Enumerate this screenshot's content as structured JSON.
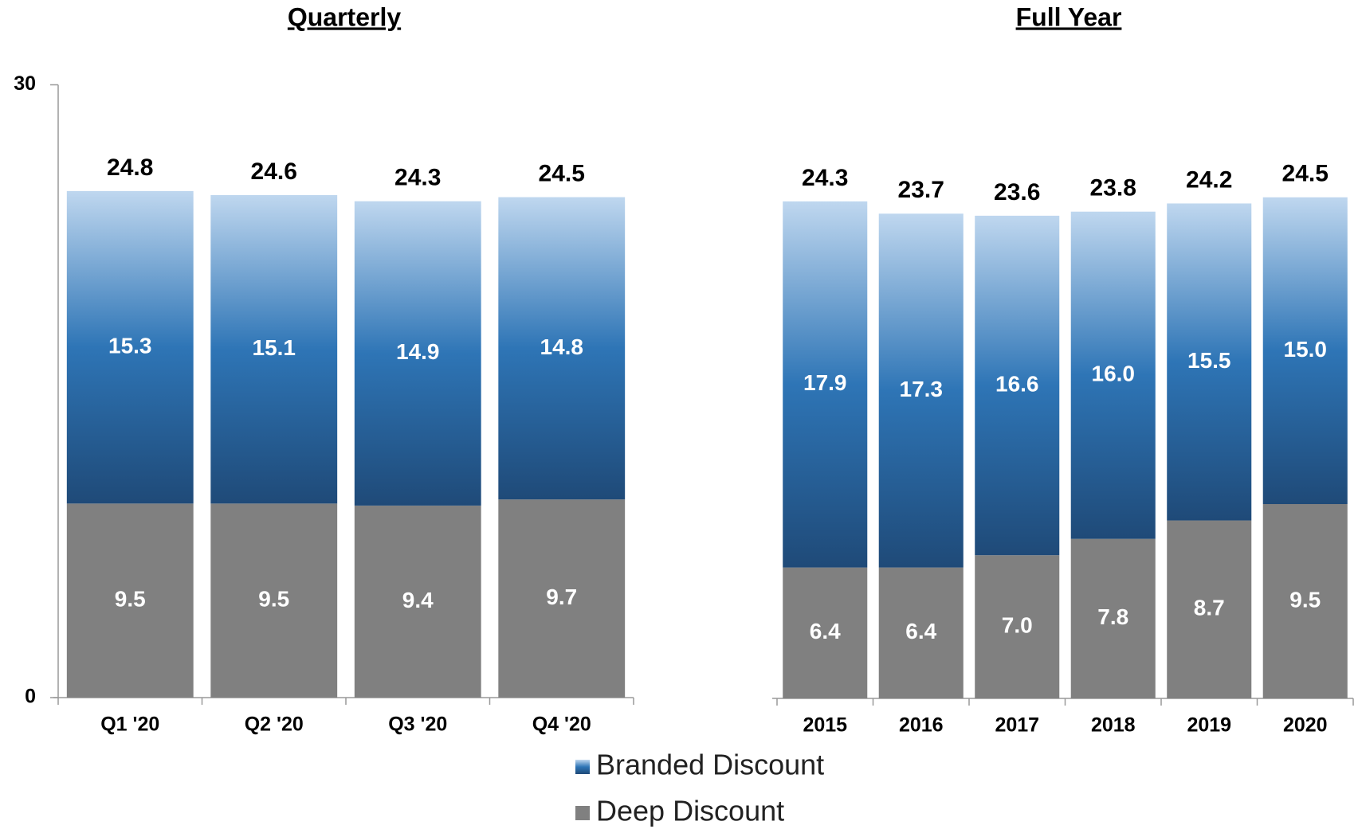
{
  "chart_data": [
    {
      "type": "bar",
      "stacked": true,
      "title": "Quarterly",
      "categories": [
        "Q1 '20",
        "Q2 '20",
        "Q3 '20",
        "Q4 '20"
      ],
      "series": [
        {
          "name": "Deep Discount",
          "color": "#808080",
          "values": [
            9.5,
            9.5,
            9.4,
            9.7
          ],
          "value_labels": [
            "9.5",
            "9.5",
            "9.4",
            "9.7"
          ]
        },
        {
          "name": "Branded Discount",
          "color": "#2e75b6",
          "values": [
            15.3,
            15.1,
            14.9,
            14.8
          ],
          "value_labels": [
            "15.3",
            "15.1",
            "14.9",
            "14.8"
          ]
        }
      ],
      "totals": [
        24.8,
        24.6,
        24.3,
        24.5
      ],
      "ylim": [
        0,
        30
      ],
      "yticks": [
        0,
        30
      ]
    },
    {
      "type": "bar",
      "stacked": true,
      "title": "Full Year",
      "categories": [
        "2015",
        "2016",
        "2017",
        "2018",
        "2019",
        "2020"
      ],
      "series": [
        {
          "color": "#808080",
          "values": [
            6.4,
            6.4,
            7.0,
            7.8,
            8.7,
            9.5
          ],
          "value_labels": [
            "6.4",
            "6.4",
            "7.0",
            "7.8",
            "8.7",
            "9.5"
          ]
        },
        {
          "color": "#2e75b6",
          "values": [
            17.9,
            17.3,
            16.6,
            16.0,
            15.5,
            15.0
          ],
          "value_labels": [
            "17.9",
            "17.3",
            "16.6",
            "16.0",
            "15.5",
            "15.0"
          ]
        }
      ],
      "totals": [
        24.3,
        23.7,
        23.6,
        23.8,
        24.2,
        24.5
      ],
      "ylim": [
        0,
        30
      ]
    }
  ]
}
